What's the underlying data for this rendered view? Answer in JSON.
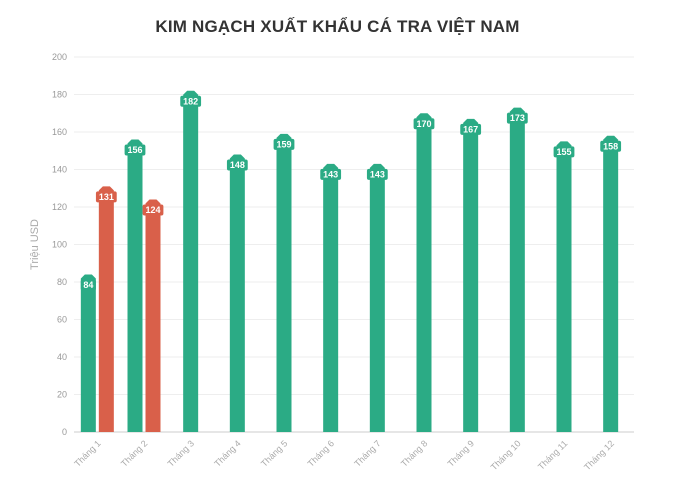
{
  "colors": {
    "series_main": "#2bab85",
    "series_secondary": "#d9604a",
    "grid": "#eeeeee",
    "axis": "#cccccc",
    "title": "#333333"
  },
  "chart_data": {
    "type": "bar",
    "title": "KIM NGẠCH XUẤT KHẨU CÁ TRA VIỆT NAM",
    "xlabel": "",
    "ylabel": "Triệu USD",
    "ylim": [
      0,
      200
    ],
    "yticks": [
      0,
      20,
      40,
      60,
      80,
      100,
      120,
      140,
      160,
      180,
      200
    ],
    "grid": true,
    "legend": "none",
    "categories": [
      "Tháng 1",
      "Tháng 2",
      "Tháng 3",
      "Tháng 4",
      "Tháng 5",
      "Tháng 6",
      "Tháng 7",
      "Tháng 8",
      "Tháng 9",
      "Tháng 10",
      "Tháng 11",
      "Tháng 12"
    ],
    "series": [
      {
        "color": "#2bab85",
        "values": [
          84,
          156,
          182,
          148,
          159,
          143,
          143,
          170,
          167,
          173,
          155,
          158
        ]
      },
      {
        "color": "#d9604a",
        "values": [
          131,
          124,
          null,
          null,
          null,
          null,
          null,
          null,
          null,
          null,
          null,
          null
        ]
      }
    ]
  }
}
